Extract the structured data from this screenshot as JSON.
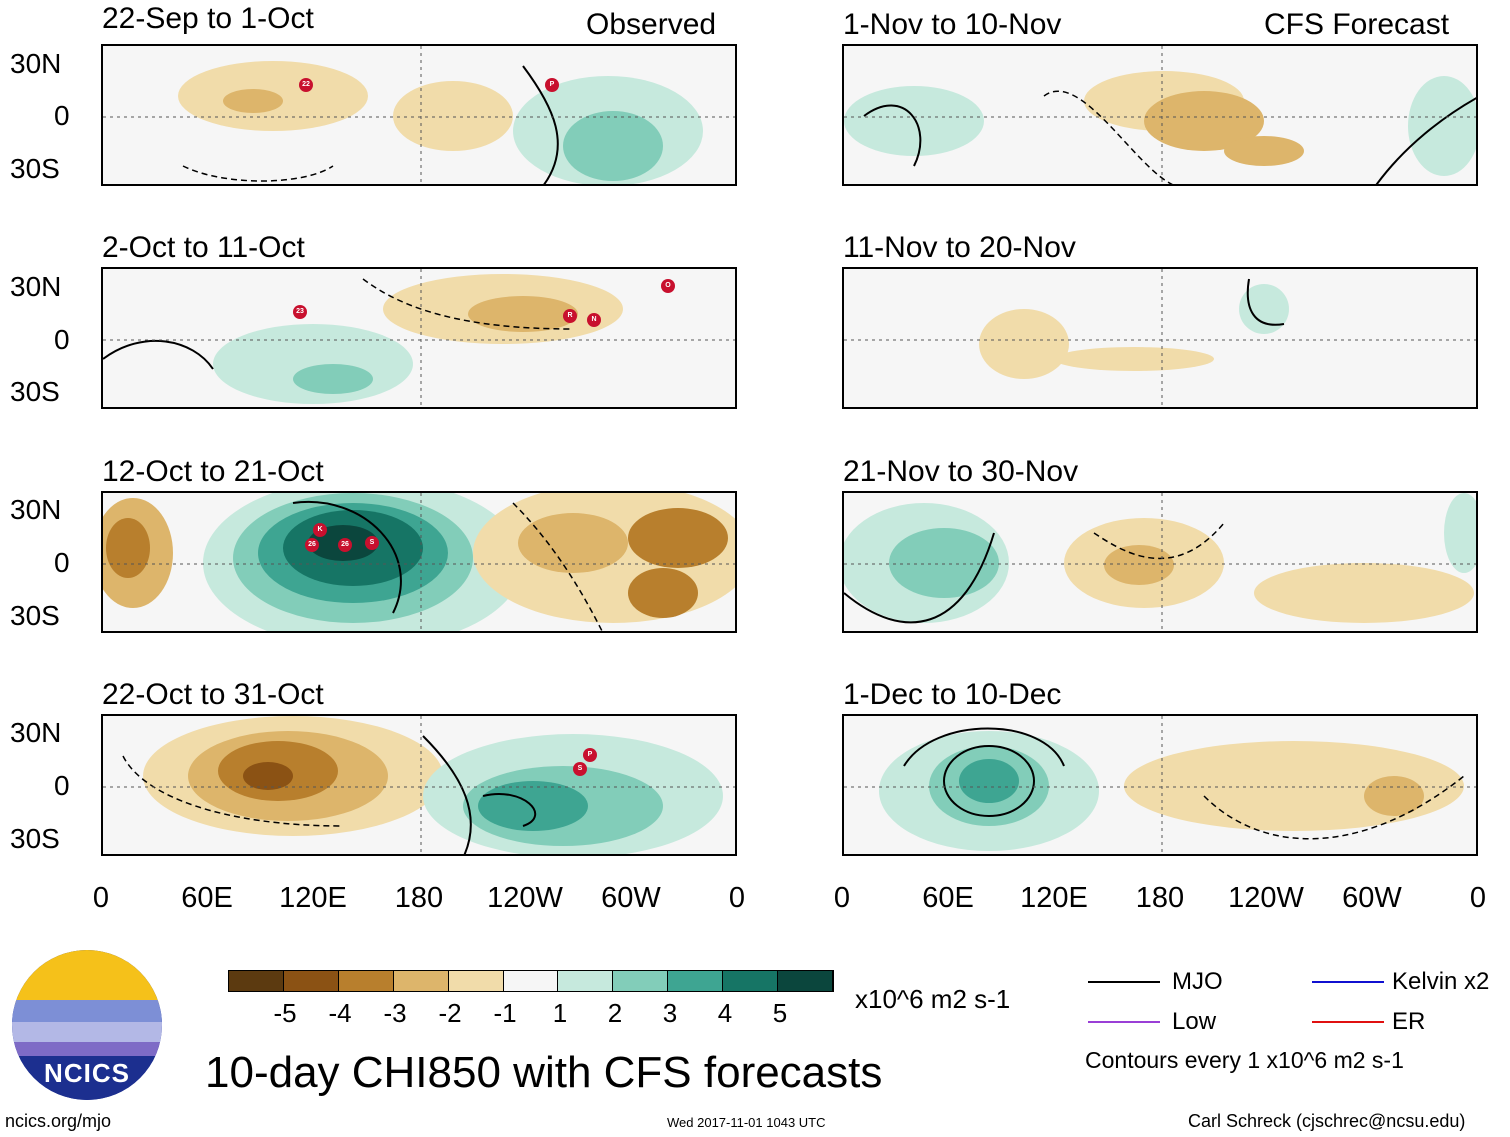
{
  "headers": {
    "left": "Observed",
    "right": "CFS Forecast"
  },
  "panels": {
    "obs": [
      "22-Sep to 1-Oct",
      "2-Oct to 11-Oct",
      "12-Oct to 21-Oct",
      "22-Oct to 31-Oct"
    ],
    "fcst": [
      "1-Nov to 10-Nov",
      "11-Nov to 20-Nov",
      "21-Nov to 30-Nov",
      "1-Dec to 10-Dec"
    ]
  },
  "lat_labels": [
    "30N",
    "0",
    "30S"
  ],
  "lon_labels": [
    "0",
    "60E",
    "120E",
    "180",
    "120W",
    "60W",
    "0"
  ],
  "storm_markers": {
    "p1": [
      "22",
      "P"
    ],
    "p2": [
      "23",
      "R",
      "N",
      "O"
    ],
    "p3": [
      "K",
      "26",
      "26",
      "S"
    ],
    "p4": [
      "P",
      "S"
    ]
  },
  "colorbar": {
    "colors": [
      "#5c3a10",
      "#8b5214",
      "#b87f2d",
      "#ddb56b",
      "#f1dcaa",
      "#f6f6f6",
      "#c6e9dd",
      "#82cdb9",
      "#3ea592",
      "#167565",
      "#0b463d"
    ],
    "labels": [
      "-5",
      "-4",
      "-3",
      "-2",
      "-1",
      "1",
      "2",
      "3",
      "4",
      "5"
    ],
    "units": "x10^6 m2 s-1"
  },
  "legend": {
    "items": [
      {
        "label": "MJO",
        "color": "#000000"
      },
      {
        "label": "Kelvin x2",
        "color": "#1010d0"
      },
      {
        "label": "Low",
        "color": "#9a3fd6"
      },
      {
        "label": "ER",
        "color": "#e01010"
      }
    ],
    "contours_note": "Contours every 1 x10^6 m2 s-1"
  },
  "logo_text": "NCICS",
  "main_title": "10-day CHI850 with CFS forecasts",
  "footer": {
    "left": "ncics.org/mjo",
    "center": "Wed 2017-11-01 1043 UTC",
    "right": "Carl Schreck (cjschrec@ncsu.edu)"
  }
}
